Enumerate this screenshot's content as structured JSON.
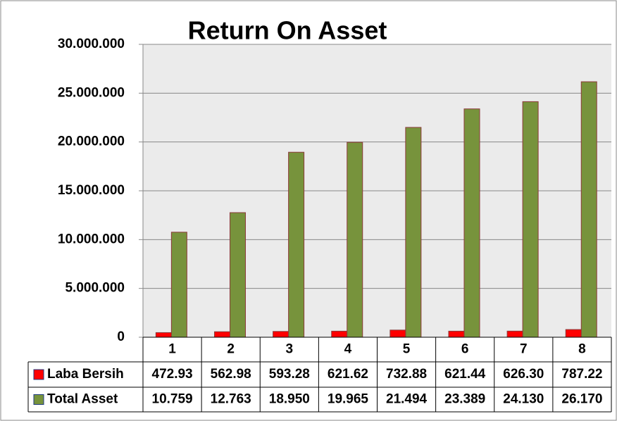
{
  "chart_data": {
    "type": "bar",
    "title": "Return On Asset",
    "categories": [
      "1",
      "2",
      "3",
      "4",
      "5",
      "6",
      "7",
      "8"
    ],
    "series": [
      {
        "name": "Laba Bersih",
        "color": "#ff0000",
        "values": [
          472930,
          562980,
          593280,
          621620,
          732880,
          621440,
          626300,
          787220
        ],
        "value_labels": [
          "472.93",
          "562.98",
          "593.28",
          "621.62",
          "732.88",
          "621.44",
          "626.30",
          "787.22"
        ]
      },
      {
        "name": "Total Asset",
        "color": "#77933c",
        "values": [
          10759000,
          12763000,
          18950000,
          19965000,
          21494000,
          23389000,
          24130000,
          26170000
        ],
        "value_labels": [
          "10.759",
          "12.763",
          "18.950",
          "19.965",
          "21.494",
          "23.389",
          "24.130",
          "26.170"
        ]
      }
    ],
    "ylim": [
      0,
      30000000
    ],
    "yticks": [
      0,
      {
        "value": 5000000,
        "label": "5.000.000"
      },
      {
        "value": 10000000,
        "label": "10.000.000"
      },
      {
        "value": 15000000,
        "label": "15.000.000"
      },
      {
        "value": 20000000,
        "label": "20.000.000"
      },
      {
        "value": 25000000,
        "label": "25.000.000"
      },
      {
        "value": 30000000,
        "label": "30.000.000"
      }
    ],
    "grid": true
  }
}
